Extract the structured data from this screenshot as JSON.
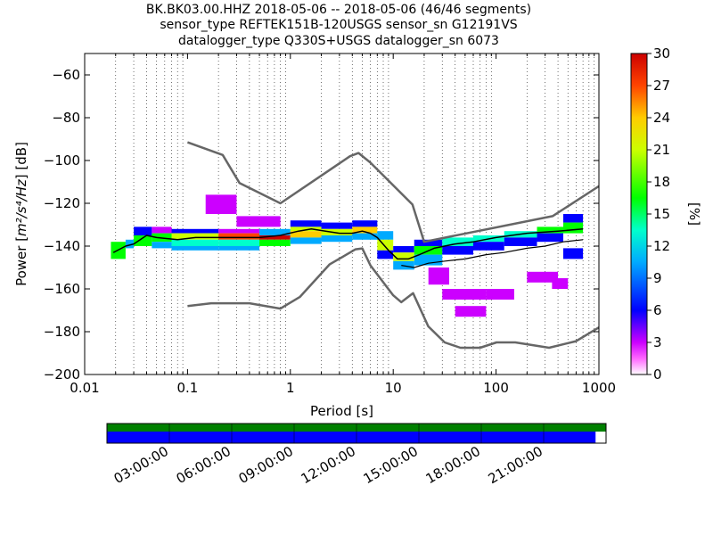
{
  "header": {
    "line1": "BK.BK03.00.HHZ   2018-05-06 -- 2018-05-06  (46/46 segments)",
    "line2": "sensor_type REFTEK151B-120USGS sensor_sn G12191VS",
    "line3": "datalogger_type Q330S+USGS datalogger_sn 6073"
  },
  "chart_data": {
    "type": "heatmap",
    "title": "BK.BK03.00.HHZ   2018-05-06 -- 2018-05-06  (46/46 segments)",
    "xlabel": "Period [s]",
    "ylabel_prefix": "Power [",
    "ylabel_math": "m²/s⁴/Hz",
    "ylabel_suffix": "] [dB]",
    "x_scale": "log",
    "xlim": [
      0.01,
      1000
    ],
    "ylim": [
      -200,
      -50
    ],
    "x_ticks": [
      {
        "v": 0.01,
        "label": "0.01"
      },
      {
        "v": 0.1,
        "label": "0.1"
      },
      {
        "v": 1,
        "label": "1"
      },
      {
        "v": 10,
        "label": "10"
      },
      {
        "v": 100,
        "label": "100"
      },
      {
        "v": 1000,
        "label": "1000"
      }
    ],
    "y_ticks": [
      {
        "v": -60,
        "label": "−60"
      },
      {
        "v": -80,
        "label": "−80"
      },
      {
        "v": -100,
        "label": "−100"
      },
      {
        "v": -120,
        "label": "−120"
      },
      {
        "v": -140,
        "label": "−140"
      },
      {
        "v": -160,
        "label": "−160"
      },
      {
        "v": -180,
        "label": "−180"
      },
      {
        "v": -200,
        "label": "−200"
      }
    ],
    "grid": "dotted vertical lines at each period bin",
    "colorbar": {
      "label": "[%]",
      "range": [
        0,
        30
      ],
      "ticks": [
        "0",
        "3",
        "6",
        "9",
        "12",
        "15",
        "18",
        "21",
        "24",
        "27",
        "30"
      ]
    },
    "series": [
      {
        "name": "",
        "style": "noise model high",
        "color": "#666666",
        "x": [
          0.1,
          0.22,
          0.32,
          0.8,
          3.8,
          4.6,
          6,
          15.4,
          20,
          354,
          1000
        ],
        "y": [
          -91.5,
          -97.4,
          -110.5,
          -120,
          -98,
          -96.5,
          -101,
          -120.6,
          -138,
          -126,
          -112
        ]
      },
      {
        "name": "",
        "style": "noise model low",
        "color": "#666666",
        "x": [
          0.1,
          0.17,
          0.4,
          0.8,
          1.24,
          2.4,
          4.3,
          5,
          6,
          10,
          12,
          15.6,
          21.9,
          31.6,
          45,
          70,
          101,
          154,
          328,
          600,
          1000
        ],
        "y": [
          -168,
          -166.7,
          -166.7,
          -169.2,
          -163.7,
          -148.6,
          -141.5,
          -141.1,
          -149,
          -163,
          -166.2,
          -162,
          -177.5,
          -185,
          -187.5,
          -187.5,
          -185,
          -185,
          -187.5,
          -184.4,
          -178
        ]
      },
      {
        "name": "",
        "style": "median",
        "color": "#000000",
        "x": [
          0.019,
          0.025,
          0.03,
          0.04,
          0.05,
          0.08,
          0.12,
          0.2,
          0.35,
          0.5,
          0.8,
          1.2,
          1.6,
          2.2,
          3,
          4,
          5,
          6,
          7,
          9,
          11,
          14,
          18,
          25,
          40,
          60,
          100,
          200,
          400,
          700
        ],
        "y": [
          -143,
          -140,
          -139,
          -135,
          -136,
          -137,
          -136,
          -136,
          -136,
          -136,
          -135,
          -133,
          -132,
          -133,
          -134,
          -134,
          -133,
          -134,
          -136,
          -142,
          -146,
          -146,
          -144,
          -141,
          -139,
          -138,
          -136,
          -134,
          -133,
          -132
        ]
      },
      {
        "name": "",
        "style": "lower edge",
        "color": "#000000",
        "x": [
          12,
          16,
          22,
          32,
          50,
          80,
          120,
          200,
          300,
          450,
          700
        ],
        "y": [
          -149,
          -150,
          -148,
          -147,
          -146,
          -144,
          -143,
          -141,
          -140,
          -138,
          -137
        ]
      }
    ],
    "density": [
      {
        "x0": 0.018,
        "x1": 0.025,
        "y0": -146,
        "y1": -138,
        "pct": 14
      },
      {
        "x0": 0.025,
        "x1": 0.03,
        "y0": -141,
        "y1": -137,
        "pct": 10
      },
      {
        "x0": 0.03,
        "x1": 0.045,
        "y0": -135,
        "y1": -131,
        "pct": 4
      },
      {
        "x0": 0.03,
        "x1": 0.045,
        "y0": -140,
        "y1": -135,
        "pct": 14
      },
      {
        "x0": 0.045,
        "x1": 0.07,
        "y0": -134,
        "y1": -131,
        "pct": 3
      },
      {
        "x0": 0.045,
        "x1": 0.07,
        "y0": -138,
        "y1": -134,
        "pct": 15
      },
      {
        "x0": 0.045,
        "x1": 0.07,
        "y0": -141,
        "y1": -138,
        "pct": 8
      },
      {
        "x0": 0.07,
        "x1": 0.2,
        "y0": -134,
        "y1": -132,
        "pct": 4
      },
      {
        "x0": 0.07,
        "x1": 0.2,
        "y0": -137,
        "y1": -134,
        "pct": 20
      },
      {
        "x0": 0.07,
        "x1": 0.2,
        "y0": -140,
        "y1": -137,
        "pct": 12
      },
      {
        "x0": 0.07,
        "x1": 0.2,
        "y0": -142,
        "y1": -140,
        "pct": 7
      },
      {
        "x0": 0.2,
        "x1": 0.5,
        "y0": -134,
        "y1": -132,
        "pct": 3
      },
      {
        "x0": 0.2,
        "x1": 0.5,
        "y0": -137,
        "y1": -134,
        "pct": 25
      },
      {
        "x0": 0.2,
        "x1": 0.5,
        "y0": -140,
        "y1": -137,
        "pct": 12
      },
      {
        "x0": 0.2,
        "x1": 0.5,
        "y0": -142,
        "y1": -140,
        "pct": 7
      },
      {
        "x0": 0.5,
        "x1": 1.0,
        "y0": -135,
        "y1": -132,
        "pct": 10
      },
      {
        "x0": 0.5,
        "x1": 1.0,
        "y0": -137,
        "y1": -135,
        "pct": 28
      },
      {
        "x0": 0.5,
        "x1": 1.0,
        "y0": -140,
        "y1": -137,
        "pct": 15
      },
      {
        "x0": 1.0,
        "x1": 2.0,
        "y0": -131,
        "y1": -128,
        "pct": 5
      },
      {
        "x0": 1.0,
        "x1": 2.0,
        "y0": -133,
        "y1": -131,
        "pct": 18
      },
      {
        "x0": 1.0,
        "x1": 2.0,
        "y0": -136,
        "y1": -133,
        "pct": 24
      },
      {
        "x0": 1.0,
        "x1": 2.0,
        "y0": -139,
        "y1": -136,
        "pct": 9
      },
      {
        "x0": 2.0,
        "x1": 4.0,
        "y0": -132,
        "y1": -129,
        "pct": 6
      },
      {
        "x0": 2.0,
        "x1": 4.0,
        "y0": -135,
        "y1": -132,
        "pct": 20
      },
      {
        "x0": 2.0,
        "x1": 4.0,
        "y0": -138,
        "y1": -135,
        "pct": 8
      },
      {
        "x0": 4.0,
        "x1": 7.0,
        "y0": -131,
        "y1": -128,
        "pct": 4
      },
      {
        "x0": 4.0,
        "x1": 7.0,
        "y0": -134,
        "y1": -131,
        "pct": 22
      },
      {
        "x0": 4.0,
        "x1": 7.0,
        "y0": -137,
        "y1": -134,
        "pct": 10
      },
      {
        "x0": 7.0,
        "x1": 10.0,
        "y0": -137,
        "y1": -133,
        "pct": 8
      },
      {
        "x0": 7.0,
        "x1": 10.0,
        "y0": -142,
        "y1": -137,
        "pct": 18
      },
      {
        "x0": 7.0,
        "x1": 10.0,
        "y0": -146,
        "y1": -142,
        "pct": 6
      },
      {
        "x0": 10.0,
        "x1": 16.0,
        "y0": -143,
        "y1": -140,
        "pct": 5
      },
      {
        "x0": 10.0,
        "x1": 16.0,
        "y0": -147,
        "y1": -143,
        "pct": 17
      },
      {
        "x0": 10.0,
        "x1": 16.0,
        "y0": -151,
        "y1": -147,
        "pct": 8
      },
      {
        "x0": 16.0,
        "x1": 30.0,
        "y0": -140,
        "y1": -137,
        "pct": 4
      },
      {
        "x0": 16.0,
        "x1": 30.0,
        "y0": -144,
        "y1": -140,
        "pct": 14
      },
      {
        "x0": 16.0,
        "x1": 30.0,
        "y0": -149,
        "y1": -144,
        "pct": 8
      },
      {
        "x0": 30.0,
        "x1": 60.0,
        "y0": -140,
        "y1": -136,
        "pct": 13
      },
      {
        "x0": 30.0,
        "x1": 60.0,
        "y0": -144,
        "y1": -140,
        "pct": 5
      },
      {
        "x0": 60.0,
        "x1": 120.0,
        "y0": -138,
        "y1": -135,
        "pct": 12
      },
      {
        "x0": 60.0,
        "x1": 120.0,
        "y0": -142,
        "y1": -138,
        "pct": 4
      },
      {
        "x0": 120.0,
        "x1": 250.0,
        "y0": -136,
        "y1": -133,
        "pct": 12
      },
      {
        "x0": 120.0,
        "x1": 250.0,
        "y0": -140,
        "y1": -136,
        "pct": 5
      },
      {
        "x0": 250.0,
        "x1": 450.0,
        "y0": -134,
        "y1": -131,
        "pct": 14
      },
      {
        "x0": 250.0,
        "x1": 450.0,
        "y0": -138,
        "y1": -134,
        "pct": 6
      },
      {
        "x0": 450.0,
        "x1": 700.0,
        "y0": -129,
        "y1": -125,
        "pct": 5
      },
      {
        "x0": 450.0,
        "x1": 700.0,
        "y0": -134,
        "y1": -129,
        "pct": 14
      },
      {
        "x0": 450.0,
        "x1": 700.0,
        "y0": -146,
        "y1": -141,
        "pct": 6
      },
      {
        "x0": 0.15,
        "x1": 0.3,
        "y0": -125,
        "y1": -116,
        "pct": 2
      },
      {
        "x0": 0.3,
        "x1": 0.8,
        "y0": -131,
        "y1": -126,
        "pct": 2
      },
      {
        "x0": 22.0,
        "x1": 35.0,
        "y0": -158,
        "y1": -150,
        "pct": 2
      },
      {
        "x0": 30.0,
        "x1": 80.0,
        "y0": -165,
        "y1": -160,
        "pct": 2
      },
      {
        "x0": 40.0,
        "x1": 80.0,
        "y0": -173,
        "y1": -168,
        "pct": 2
      },
      {
        "x0": 80.0,
        "x1": 150.0,
        "y0": -165,
        "y1": -160,
        "pct": 2
      },
      {
        "x0": 200.0,
        "x1": 400.0,
        "y0": -157,
        "y1": -152,
        "pct": 3
      },
      {
        "x0": 350.0,
        "x1": 500.0,
        "y0": -160,
        "y1": -155,
        "pct": 2
      }
    ]
  },
  "timeline": {
    "tick_labels": [
      "03:00:00",
      "06:00:00",
      "09:00:00",
      "12:00:00",
      "15:00:00",
      "18:00:00",
      "21:00:00"
    ],
    "green_fill_fraction": 1.0,
    "blue_fill_fraction": 0.979,
    "colors": {
      "green": "#008000",
      "blue": "#0000ff"
    }
  }
}
